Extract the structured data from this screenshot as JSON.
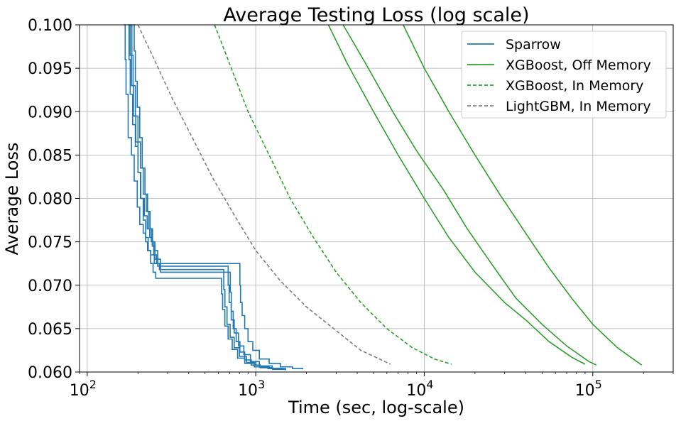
{
  "chart_data": {
    "type": "line",
    "title": "Average Testing Loss (log scale)",
    "xlabel": "Time (sec, log-scale)",
    "ylabel": "Average Loss",
    "xscale": "log",
    "xlim": [
      90,
      300000
    ],
    "ylim": [
      0.06,
      0.1
    ],
    "grid": true,
    "legend_position": "top-right",
    "x_ticks": [
      {
        "value": 100,
        "base": "10",
        "exp": "2"
      },
      {
        "value": 1000,
        "base": "10",
        "exp": "3"
      },
      {
        "value": 10000,
        "base": "10",
        "exp": "4"
      },
      {
        "value": 100000,
        "base": "10",
        "exp": "5"
      }
    ],
    "y_ticks": [
      {
        "value": 0.06,
        "label": "0.060"
      },
      {
        "value": 0.065,
        "label": "0.065"
      },
      {
        "value": 0.07,
        "label": "0.070"
      },
      {
        "value": 0.075,
        "label": "0.075"
      },
      {
        "value": 0.08,
        "label": "0.080"
      },
      {
        "value": 0.085,
        "label": "0.085"
      },
      {
        "value": 0.09,
        "label": "0.090"
      },
      {
        "value": 0.095,
        "label": "0.095"
      },
      {
        "value": 0.1,
        "label": "0.100"
      }
    ],
    "legend": [
      {
        "label": "Sparrow",
        "color": "#1f77b4",
        "dash": "solid"
      },
      {
        "label": "XGBoost, Off Memory",
        "color": "#2ca02c",
        "dash": "solid"
      },
      {
        "label": "XGBoost, In Memory",
        "color": "#2ca02c",
        "dash": "dashed"
      },
      {
        "label": "LightGBM, In Memory",
        "color": "#7f7f7f",
        "dash": "dashed"
      }
    ],
    "series": [
      {
        "legend_index": 0,
        "color": "#1f77b4",
        "dash": "solid",
        "step": true,
        "x": [
          165,
          168,
          170,
          175,
          183,
          190,
          198,
          205,
          215,
          222,
          228,
          238,
          250,
          260,
          800,
          805,
          812,
          830,
          860,
          900,
          960,
          1050,
          1200,
          1400,
          1650,
          1900
        ],
        "y": [
          0.1,
          0.096,
          0.092,
          0.087,
          0.085,
          0.082,
          0.079,
          0.077,
          0.076,
          0.075,
          0.074,
          0.0735,
          0.0725,
          0.0725,
          0.0725,
          0.07,
          0.068,
          0.0665,
          0.065,
          0.0635,
          0.0625,
          0.0615,
          0.061,
          0.0606,
          0.0604,
          0.0603
        ]
      },
      {
        "legend_index": 0,
        "color": "#1f77b4",
        "dash": "solid",
        "step": true,
        "x": [
          175,
          177,
          180,
          186,
          193,
          200,
          208,
          218,
          227,
          235,
          243,
          252,
          262,
          680,
          686,
          695,
          715,
          745,
          790,
          850,
          930,
          1050,
          1250,
          1500
        ],
        "y": [
          0.1,
          0.096,
          0.092,
          0.0885,
          0.086,
          0.083,
          0.08,
          0.078,
          0.0765,
          0.0755,
          0.0745,
          0.073,
          0.0722,
          0.0722,
          0.07,
          0.068,
          0.066,
          0.0645,
          0.063,
          0.062,
          0.0612,
          0.0607,
          0.0604,
          0.0603
        ]
      },
      {
        "legend_index": 0,
        "color": "#1f77b4",
        "dash": "solid",
        "step": true,
        "x": [
          182,
          184,
          187,
          193,
          200,
          207,
          215,
          224,
          232,
          240,
          248,
          258,
          268,
          640,
          646,
          656,
          675,
          705,
          745,
          800,
          880,
          1000,
          1200,
          1450
        ],
        "y": [
          0.1,
          0.0965,
          0.093,
          0.0895,
          0.0865,
          0.0835,
          0.0805,
          0.0785,
          0.0765,
          0.075,
          0.0735,
          0.0725,
          0.0718,
          0.0718,
          0.0695,
          0.0675,
          0.0655,
          0.064,
          0.0628,
          0.0618,
          0.0611,
          0.0606,
          0.0604,
          0.0603
        ]
      },
      {
        "legend_index": 0,
        "color": "#1f77b4",
        "dash": "solid",
        "step": true,
        "x": [
          188,
          190,
          193,
          198,
          205,
          212,
          220,
          228,
          236,
          244,
          252,
          262,
          272,
          700,
          706,
          716,
          735,
          765,
          805,
          860,
          940,
          1060,
          1260,
          1500
        ],
        "y": [
          0.1,
          0.097,
          0.0935,
          0.0905,
          0.087,
          0.0835,
          0.0805,
          0.0785,
          0.0765,
          0.075,
          0.074,
          0.073,
          0.0715,
          0.0715,
          0.0692,
          0.067,
          0.065,
          0.0635,
          0.0623,
          0.0614,
          0.0608,
          0.0605,
          0.0603,
          0.0602
        ]
      },
      {
        "legend_index": 0,
        "color": "#1f77b4",
        "dash": "solid",
        "step": true,
        "x": [
          178,
          180,
          183,
          188,
          194,
          200,
          207,
          215,
          222,
          230,
          238,
          246,
          255,
          620,
          626,
          636,
          655,
          685,
          725,
          780,
          860,
          980,
          1180,
          1400
        ],
        "y": [
          0.1,
          0.0965,
          0.093,
          0.0895,
          0.0865,
          0.083,
          0.08,
          0.0775,
          0.0755,
          0.074,
          0.0725,
          0.0715,
          0.0708,
          0.0708,
          0.069,
          0.0672,
          0.0653,
          0.0638,
          0.0626,
          0.0616,
          0.061,
          0.0606,
          0.0604,
          0.0603
        ]
      },
      {
        "legend_index": 1,
        "color": "#2ca02c",
        "dash": "solid",
        "step": false,
        "x": [
          2700,
          3500,
          5000,
          7000,
          10000,
          14000,
          20000,
          30000,
          40000,
          55000,
          75000,
          90000
        ],
        "y": [
          0.1,
          0.0955,
          0.09,
          0.085,
          0.08,
          0.0755,
          0.0715,
          0.068,
          0.066,
          0.0635,
          0.0617,
          0.0609
        ]
      },
      {
        "legend_index": 1,
        "color": "#2ca02c",
        "dash": "solid",
        "step": false,
        "x": [
          3300,
          4500,
          6500,
          9000,
          13000,
          18000,
          25000,
          35000,
          50000,
          70000,
          95000,
          105000
        ],
        "y": [
          0.1,
          0.0955,
          0.09,
          0.0855,
          0.081,
          0.0765,
          0.0725,
          0.0685,
          0.0655,
          0.063,
          0.0612,
          0.0608
        ]
      },
      {
        "legend_index": 1,
        "color": "#2ca02c",
        "dash": "solid",
        "step": false,
        "x": [
          7500,
          10000,
          14000,
          20000,
          28000,
          40000,
          55000,
          75000,
          100000,
          140000,
          195000
        ],
        "y": [
          0.1,
          0.095,
          0.09,
          0.085,
          0.0805,
          0.076,
          0.072,
          0.0685,
          0.0655,
          0.0628,
          0.0608
        ]
      },
      {
        "legend_index": 2,
        "color": "#2ca02c",
        "dash": "dashed",
        "step": false,
        "x": [
          570,
          700,
          900,
          1200,
          1600,
          2200,
          3000,
          4200,
          6000,
          8500,
          11500,
          14500
        ],
        "y": [
          0.1,
          0.0955,
          0.09,
          0.085,
          0.08,
          0.0755,
          0.0715,
          0.068,
          0.065,
          0.0628,
          0.0615,
          0.0609
        ]
      },
      {
        "legend_index": 3,
        "color": "#7f7f7f",
        "dash": "dashed",
        "step": false,
        "x": [
          200,
          250,
          320,
          420,
          550,
          750,
          1000,
          1400,
          2000,
          2900,
          4200,
          6300
        ],
        "y": [
          0.1,
          0.096,
          0.0915,
          0.087,
          0.0825,
          0.078,
          0.074,
          0.0705,
          0.0675,
          0.065,
          0.0625,
          0.0609
        ]
      }
    ]
  }
}
